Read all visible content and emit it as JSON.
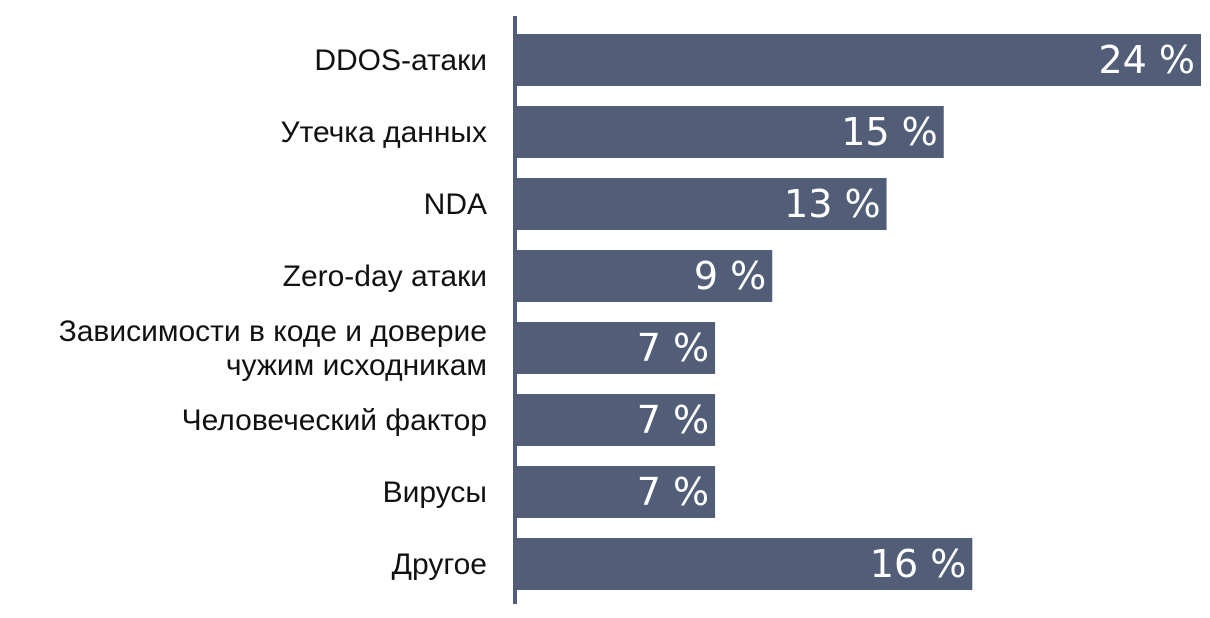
{
  "chart_data": {
    "type": "bar",
    "orientation": "horizontal",
    "title": "",
    "xlabel": "",
    "ylabel": "",
    "categories": [
      [
        "DDOS-атаки"
      ],
      [
        "Утечка данных"
      ],
      [
        "NDA"
      ],
      [
        "Zero-day атаки"
      ],
      [
        "Зависимости в коде и доверие",
        "чужим исходникам"
      ],
      [
        "Человеческий фактор"
      ],
      [
        "Вирусы"
      ],
      [
        "Другое"
      ]
    ],
    "values": [
      24,
      15,
      13,
      9,
      7,
      7,
      7,
      16
    ],
    "value_labels": [
      "24 %",
      "15 %",
      "13 %",
      "9 %",
      "7 %",
      "7 %",
      "7 %",
      "16 %"
    ],
    "xlim": [
      0,
      24
    ],
    "grid": false,
    "legend": "none",
    "colors": {
      "bar": "#525e78",
      "axis": "#525e78",
      "label": "#111111",
      "value_label": "#ffffff"
    }
  }
}
